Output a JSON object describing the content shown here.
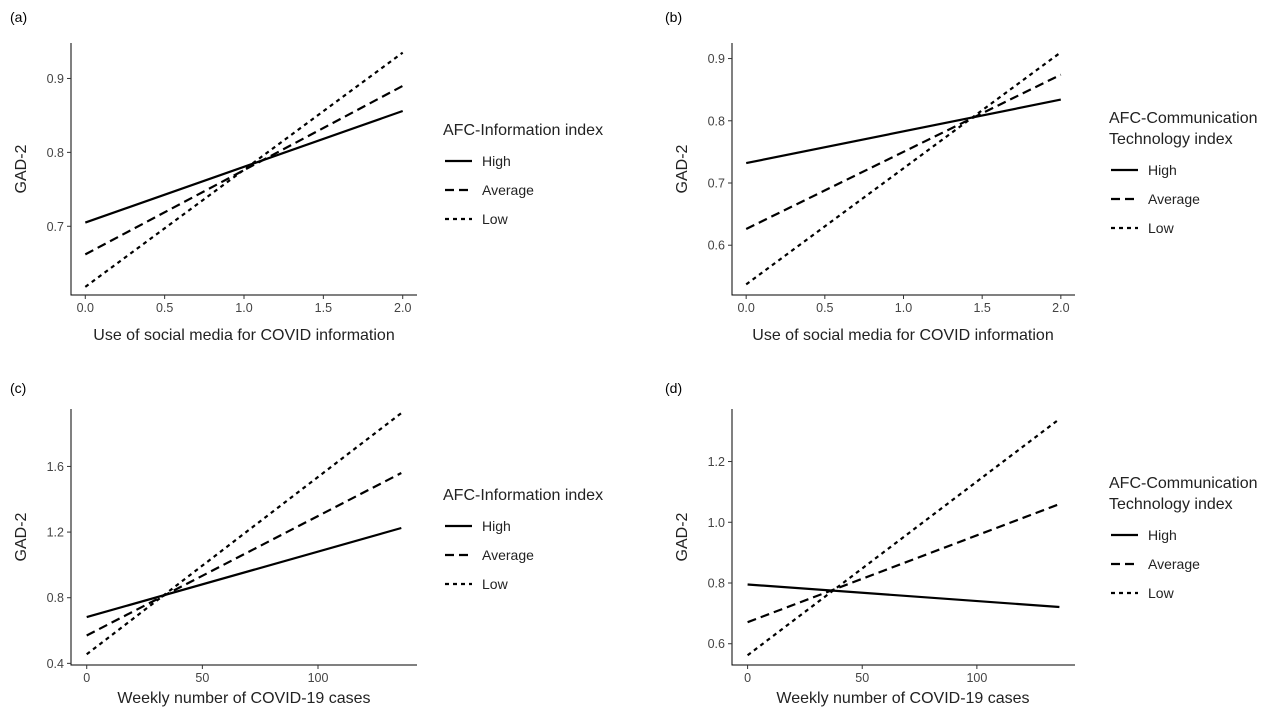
{
  "chart_data": [
    {
      "panel": "(a)",
      "type": "line",
      "xlabel": "Use of social media for COVID information",
      "ylabel": "GAD-2",
      "xlim": [
        -0.09,
        2.09
      ],
      "ylim": [
        0.607,
        0.948
      ],
      "xticks": [
        0.0,
        0.5,
        1.0,
        1.5,
        2.0
      ],
      "xtick_labels": [
        "0.0",
        "0.5",
        "1.0",
        "1.5",
        "2.0"
      ],
      "yticks": [
        0.7,
        0.8,
        0.9
      ],
      "ytick_labels": [
        "0.7",
        "0.8",
        "0.9"
      ],
      "legend_title": [
        "AFC-Information index"
      ],
      "legend_position": "right",
      "series": [
        {
          "name": "High",
          "dash": "solid",
          "x": [
            0,
            2
          ],
          "y": [
            0.705,
            0.856
          ]
        },
        {
          "name": "Average",
          "dash": "long-dash",
          "x": [
            0,
            2
          ],
          "y": [
            0.662,
            0.89
          ]
        },
        {
          "name": "Low",
          "dash": "short-dash",
          "x": [
            0,
            2
          ],
          "y": [
            0.618,
            0.935
          ]
        }
      ]
    },
    {
      "panel": "(b)",
      "type": "line",
      "xlabel": "Use of social media for COVID information",
      "ylabel": "GAD-2",
      "xlim": [
        -0.09,
        2.09
      ],
      "ylim": [
        0.52,
        0.925
      ],
      "xticks": [
        0.0,
        0.5,
        1.0,
        1.5,
        2.0
      ],
      "xtick_labels": [
        "0.0",
        "0.5",
        "1.0",
        "1.5",
        "2.0"
      ],
      "yticks": [
        0.6,
        0.7,
        0.8,
        0.9
      ],
      "ytick_labels": [
        "0.6",
        "0.7",
        "0.8",
        "0.9"
      ],
      "legend_title": [
        "AFC-Communication",
        "Technology index"
      ],
      "legend_position": "right",
      "series": [
        {
          "name": "High",
          "dash": "solid",
          "x": [
            0,
            2
          ],
          "y": [
            0.732,
            0.834
          ]
        },
        {
          "name": "Average",
          "dash": "long-dash",
          "x": [
            0,
            2
          ],
          "y": [
            0.626,
            0.874
          ]
        },
        {
          "name": "Low",
          "dash": "short-dash",
          "x": [
            0,
            2
          ],
          "y": [
            0.537,
            0.91
          ]
        }
      ]
    },
    {
      "panel": "(c)",
      "type": "line",
      "xlabel": "Weekly number of COVID-19 cases",
      "ylabel": "GAD-2",
      "xlim": [
        -6.8,
        142.8
      ],
      "ylim": [
        0.39,
        1.95
      ],
      "xticks": [
        0,
        50,
        100
      ],
      "xtick_labels": [
        "0",
        "50",
        "100"
      ],
      "yticks": [
        0.4,
        0.8,
        1.2,
        1.6
      ],
      "ytick_labels": [
        "0.4",
        "0.8",
        "1.2",
        "1.6"
      ],
      "legend_title": [
        "AFC-Information index"
      ],
      "legend_position": "right",
      "series": [
        {
          "name": "High",
          "dash": "solid",
          "x": [
            0,
            136
          ],
          "y": [
            0.682,
            1.225
          ]
        },
        {
          "name": "Average",
          "dash": "long-dash",
          "x": [
            0,
            136
          ],
          "y": [
            0.57,
            1.56
          ]
        },
        {
          "name": "Low",
          "dash": "short-dash",
          "x": [
            0,
            136
          ],
          "y": [
            0.455,
            1.925
          ]
        }
      ]
    },
    {
      "panel": "(d)",
      "type": "line",
      "xlabel": "Weekly number of COVID-19 cases",
      "ylabel": "GAD-2",
      "xlim": [
        -6.8,
        142.8
      ],
      "ylim": [
        0.53,
        1.373
      ],
      "xticks": [
        0,
        50,
        100
      ],
      "xtick_labels": [
        "0",
        "50",
        "100"
      ],
      "yticks": [
        0.6,
        0.8,
        1.0,
        1.2
      ],
      "ytick_labels": [
        "0.6",
        "0.8",
        "1.0",
        "1.2"
      ],
      "legend_title": [
        "AFC-Communication",
        "Technology index"
      ],
      "legend_position": "right",
      "series": [
        {
          "name": "High",
          "dash": "solid",
          "x": [
            0,
            136
          ],
          "y": [
            0.795,
            0.721
          ]
        },
        {
          "name": "Average",
          "dash": "long-dash",
          "x": [
            0,
            136
          ],
          "y": [
            0.671,
            1.06
          ]
        },
        {
          "name": "Low",
          "dash": "short-dash",
          "x": [
            0,
            136
          ],
          "y": [
            0.562,
            1.34
          ]
        }
      ]
    }
  ]
}
